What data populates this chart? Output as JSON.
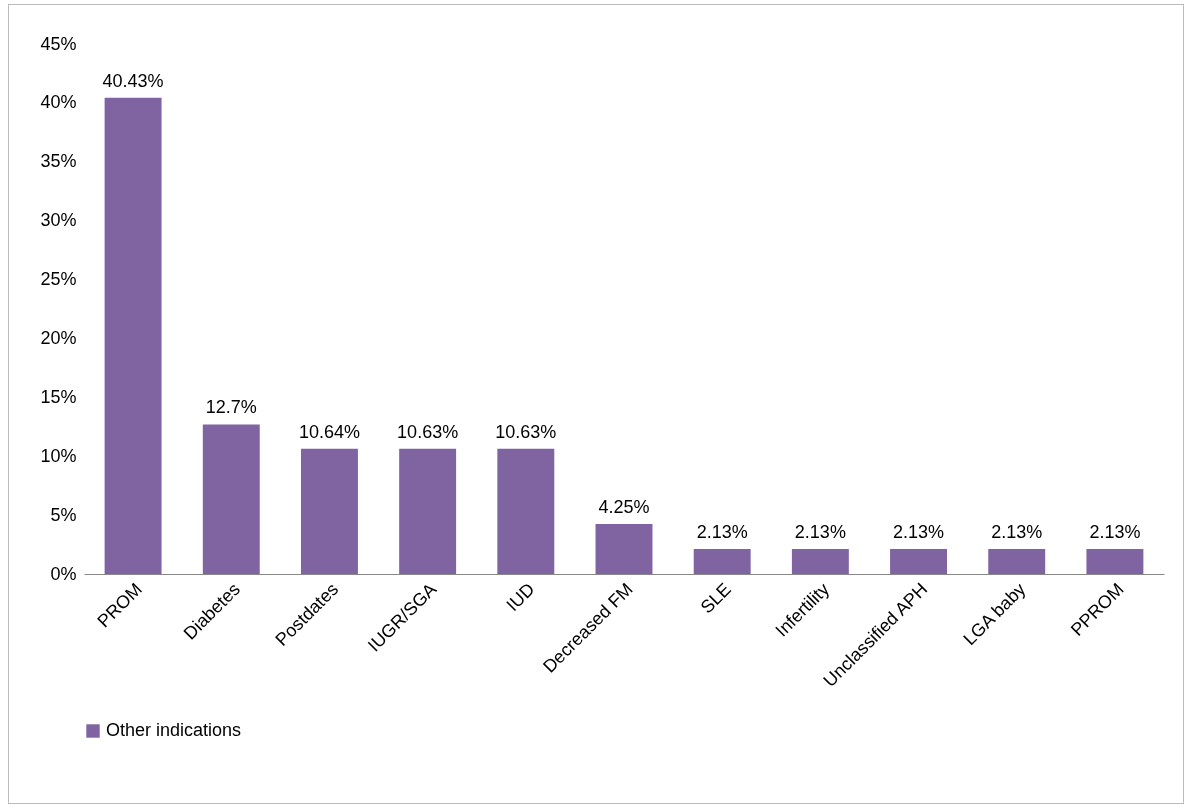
{
  "chart_data": {
    "type": "bar",
    "categories": [
      "PROM",
      "Diabetes",
      "Postdates",
      "IUGR/SGA",
      "IUD",
      "Decreased FM",
      "SLE",
      "Infertility",
      "Unclassified APH",
      "LGA baby",
      "PPROM"
    ],
    "series": [
      {
        "name": "Other indications",
        "color": "#8064a2",
        "values": [
          40.43,
          12.7,
          10.64,
          10.63,
          10.63,
          4.25,
          2.13,
          2.13,
          2.13,
          2.13,
          2.13
        ],
        "value_labels": [
          "40.43%",
          "12.7%",
          "10.64%",
          "10.63%",
          "10.63%",
          "4.25%",
          "2.13%",
          "2.13%",
          "2.13%",
          "2.13%",
          "2.13%"
        ]
      }
    ],
    "ylim": [
      0,
      45
    ],
    "yticks": [
      {
        "value": 0,
        "label": "0%"
      },
      {
        "value": 5,
        "label": "5%"
      },
      {
        "value": 10,
        "label": "10%"
      },
      {
        "value": 15,
        "label": "15%"
      },
      {
        "value": 20,
        "label": "20%"
      },
      {
        "value": 25,
        "label": "25%"
      },
      {
        "value": 30,
        "label": "30%"
      },
      {
        "value": 35,
        "label": "35%"
      },
      {
        "value": 40,
        "label": "40%"
      },
      {
        "value": 45,
        "label": "45%"
      }
    ],
    "grid": false,
    "legend": "bottom"
  }
}
